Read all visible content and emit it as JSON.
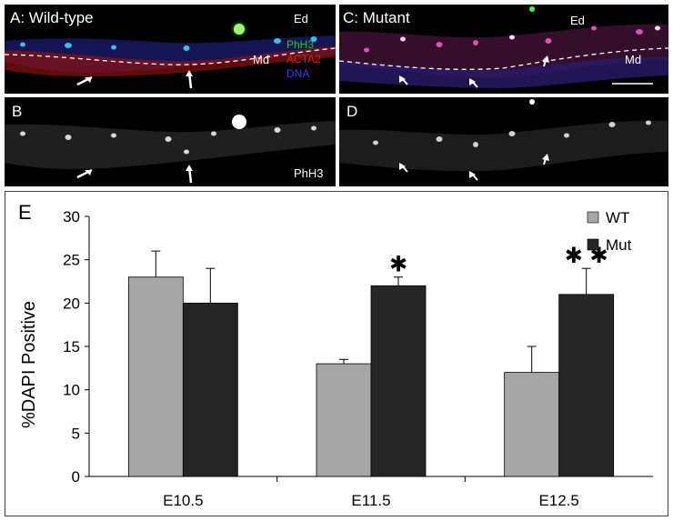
{
  "panels": {
    "a": {
      "label": "A: Wild-type",
      "ed": "Ed",
      "md": "Md",
      "legend": [
        {
          "text": "PhH3",
          "color": "#2fbf3a"
        },
        {
          "text": "ACTA2",
          "color": "#e0201a"
        },
        {
          "text": "DNA",
          "color": "#3a3ae6"
        }
      ]
    },
    "b": {
      "label": "B",
      "marker": "PhH3"
    },
    "c": {
      "label": "C: Mutant",
      "ed": "Ed",
      "md": "Md"
    },
    "d": {
      "label": "D"
    }
  },
  "chart_data": {
    "type": "bar",
    "panel_label": "E",
    "categories": [
      "E10.5",
      "E11.5",
      "E12.5"
    ],
    "ylabel": "%DAPI Positive",
    "xlabel": "",
    "ylim": [
      0,
      30
    ],
    "yticks": [
      0,
      5,
      10,
      15,
      20,
      25,
      30
    ],
    "series": [
      {
        "name": "WT",
        "color": "#a6a6a6",
        "values": [
          23,
          13,
          12
        ],
        "error": [
          3,
          0.5,
          3
        ]
      },
      {
        "name": "Mut",
        "color": "#262626",
        "values": [
          20,
          22,
          21
        ],
        "error": [
          4,
          1,
          3
        ]
      }
    ],
    "significance": [
      "",
      "*",
      "**"
    ],
    "legend_position": "top-right",
    "grid": false
  }
}
